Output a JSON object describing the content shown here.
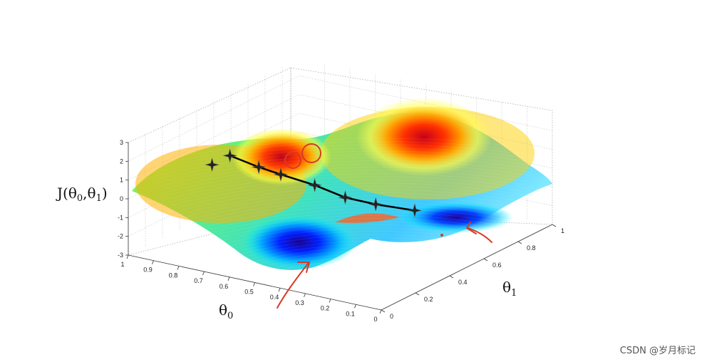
{
  "chart_data": {
    "type": "surface",
    "title": "",
    "zlabel": "J(θ0,θ1)",
    "xlabel": "θ0",
    "ylabel": "θ1",
    "zlabel_main": "J(θ",
    "zlabel_sub0": "0",
    "zlabel_sep": ",θ",
    "zlabel_sub1": "1",
    "zlabel_end": ")",
    "xlabel_main": "θ",
    "xlabel_sub": "0",
    "ylabel_main": "θ",
    "ylabel_sub": "1",
    "theta0_ticks": [
      "1",
      "0.9",
      "0.8",
      "0.7",
      "0.6",
      "0.5",
      "0.4",
      "0.3",
      "0.2",
      "0.1",
      "0"
    ],
    "theta1_ticks": [
      "0",
      "0.2",
      "0.4",
      "0.6",
      "0.8",
      "1"
    ],
    "z_ticks": [
      "3",
      "2",
      "1",
      "0",
      "-1",
      "-2",
      "-3"
    ],
    "theta0_range": [
      0,
      1
    ],
    "theta1_range": [
      0,
      1
    ],
    "z_range": [
      -3,
      3
    ],
    "grid": true,
    "colormap": "jet",
    "descent_path": [
      {
        "t0": 0.72,
        "t1": 0.18,
        "j": 2.3
      },
      {
        "t0": 0.66,
        "t1": 0.26,
        "j": 1.5
      },
      {
        "t0": 0.6,
        "t1": 0.3,
        "j": 1.1
      },
      {
        "t0": 0.52,
        "t1": 0.38,
        "j": 0.4
      },
      {
        "t0": 0.44,
        "t1": 0.44,
        "j": -0.3
      },
      {
        "t0": 0.36,
        "t1": 0.5,
        "j": -0.7
      },
      {
        "t0": 0.26,
        "t1": 0.58,
        "j": -1.1
      }
    ],
    "start_point": {
      "t0": 0.75,
      "t1": 0.12,
      "j": 2.0
    }
  },
  "watermark": "CSDN @岁月标记",
  "colors": {
    "path": "#000000",
    "annotation": "#d83a24",
    "grid": "#b0b0b0"
  }
}
